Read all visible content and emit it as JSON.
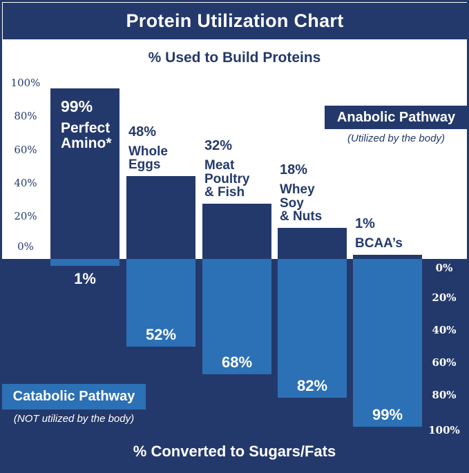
{
  "title": "Protein Utilization Chart",
  "upper_section_title": "% Used to Build Proteins",
  "lower_section_title": "% Converted to Sugars/Fats",
  "legend": {
    "anabolic": {
      "label": "Anabolic Pathway",
      "caption": "(Utilized by the body)"
    },
    "catabolic": {
      "label": "Catabolic Pathway",
      "caption": "(NOT utilized by the body)"
    }
  },
  "colors": {
    "navy": "#24396B",
    "light_blue": "#2C70B5",
    "white": "#FFFFFF"
  },
  "chart_data": {
    "type": "bar",
    "subtype": "diverging-vertical",
    "title": "Protein Utilization Chart",
    "upper_axis_label": "% Used to Build Proteins",
    "lower_axis_label": "% Converted to Sugars/Fats",
    "categories": [
      "Perfect Amino*",
      "Whole Eggs",
      "Meat Poultry & Fish",
      "Whey Soy & Nuts",
      "BCAA’s"
    ],
    "series": [
      {
        "name": "Anabolic Pathway (Utilized by the body)",
        "direction": "up",
        "color": "#24396B",
        "values": [
          99,
          48,
          32,
          18,
          1
        ]
      },
      {
        "name": "Catabolic Pathway (NOT utilized by the body)",
        "direction": "down",
        "color": "#2C70B5",
        "values": [
          1,
          52,
          68,
          82,
          99
        ]
      }
    ],
    "upper_axis_ticks": [
      "100%",
      "80%",
      "60%",
      "40%",
      "20%",
      "0%"
    ],
    "lower_axis_ticks": [
      "0%",
      "20%",
      "40%",
      "60%",
      "80%",
      "100%"
    ],
    "upper_axis_range": [
      0,
      100
    ],
    "lower_axis_range": [
      0,
      100
    ],
    "grid": false,
    "bars": [
      {
        "category": "Perfect Amino*",
        "up": 99,
        "down": 1,
        "up_label": "99%",
        "name_lines": "Perfect\nAmino*",
        "down_label": "1%"
      },
      {
        "category": "Whole Eggs",
        "up": 48,
        "down": 52,
        "up_label": "48%",
        "name_lines": "Whole\nEggs",
        "down_label": "52%"
      },
      {
        "category": "Meat Poultry & Fish",
        "up": 32,
        "down": 68,
        "up_label": "32%",
        "name_lines": "Meat\nPoultry\n& Fish",
        "down_label": "68%"
      },
      {
        "category": "Whey Soy & Nuts",
        "up": 18,
        "down": 82,
        "up_label": "18%",
        "name_lines": "Whey\nSoy\n& Nuts",
        "down_label": "82%"
      },
      {
        "category": "BCAA’s",
        "up": 1,
        "down": 99,
        "up_label": "1%",
        "name_lines": "BCAA’s",
        "down_label": "99%"
      }
    ]
  }
}
